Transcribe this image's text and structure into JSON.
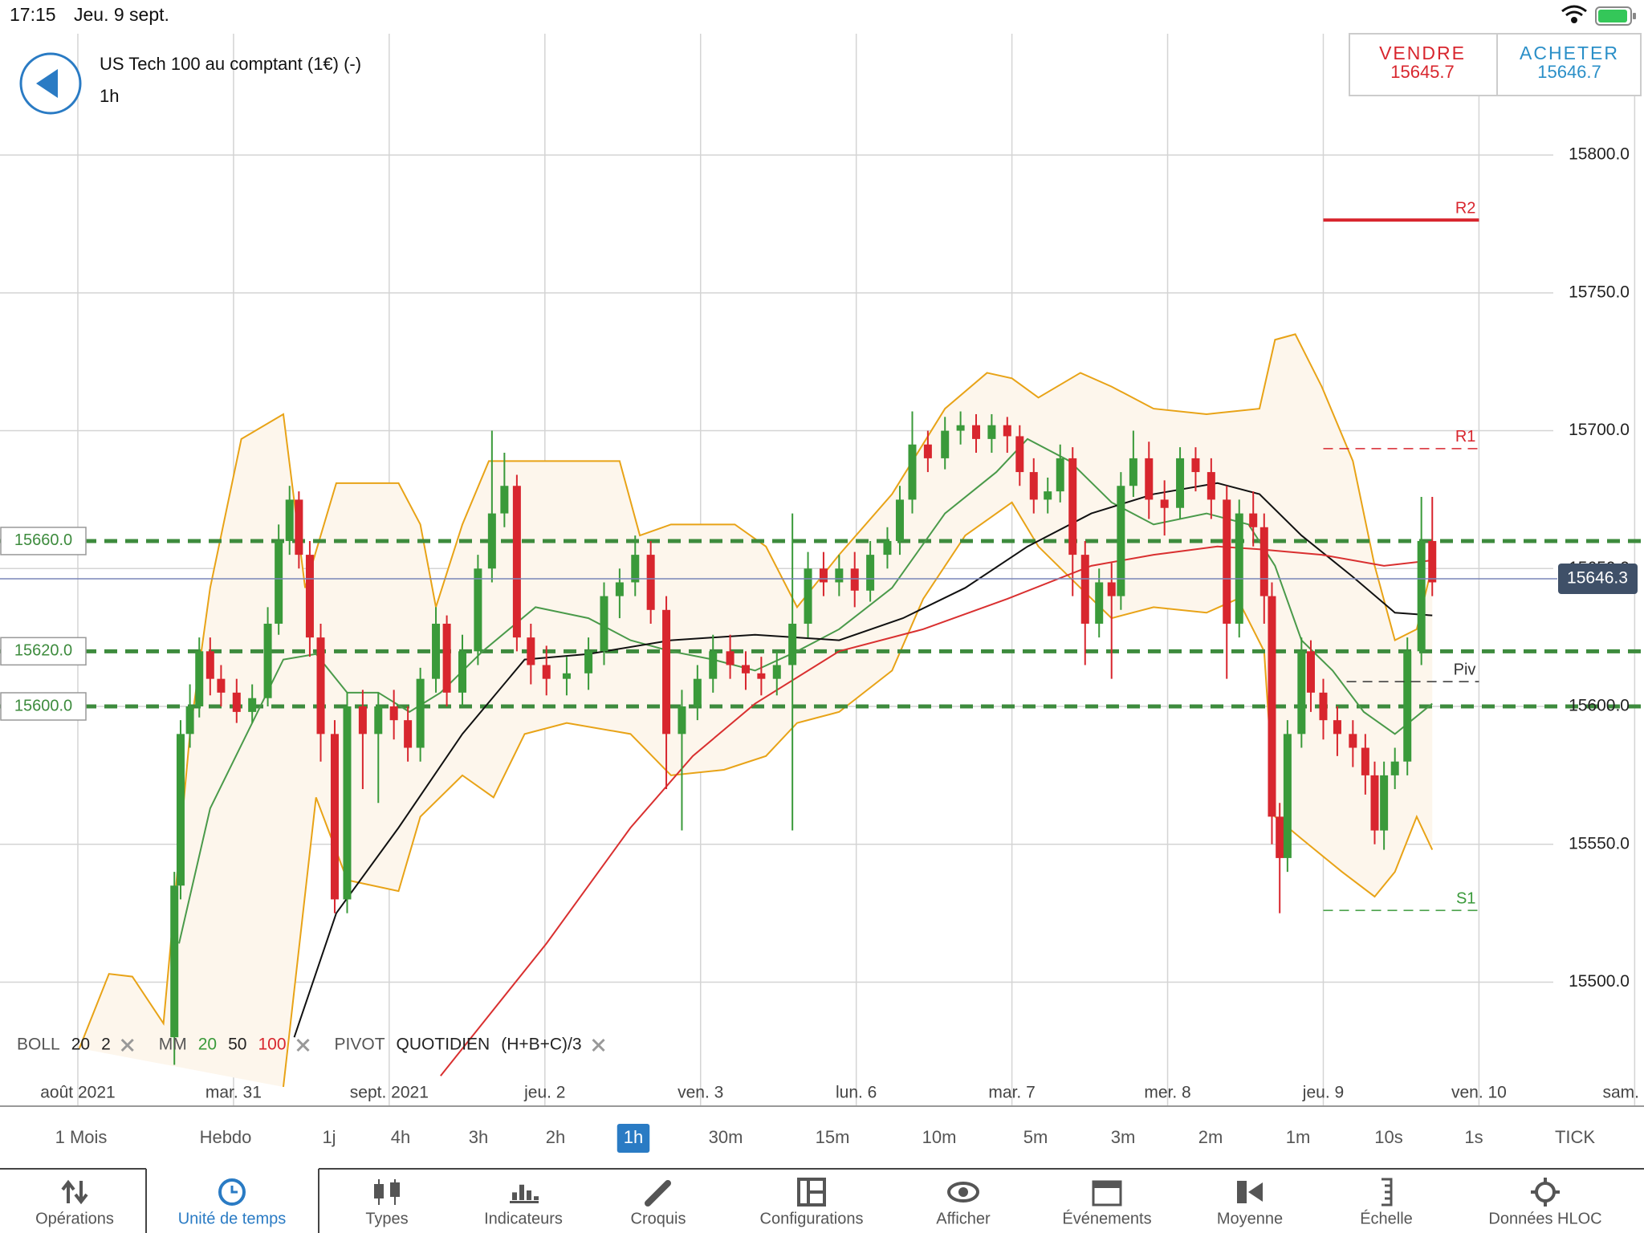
{
  "status_bar": {
    "time": "17:15",
    "date": "Jeu. 9 sept."
  },
  "header": {
    "title": "US Tech 100 au comptant (1€) (-)",
    "timeframe": "1h"
  },
  "quote": {
    "sell_label": "VENDRE",
    "sell": 15645.7,
    "buy_label": "ACHETER",
    "buy": 15646.7
  },
  "chart_data": {
    "type": "candlestick",
    "up_color": "#3a9a3a",
    "down_color": "#d8262e",
    "grid": true,
    "xlim": [
      29.5,
      40.06
    ],
    "ylim": [
      15455,
      15844
    ],
    "xticks": [
      {
        "value": 30,
        "label": "août 2021"
      },
      {
        "value": 31,
        "label": "mar. 31"
      },
      {
        "value": 32,
        "label": "sept. 2021"
      },
      {
        "value": 33,
        "label": "jeu. 2"
      },
      {
        "value": 34,
        "label": "ven. 3"
      },
      {
        "value": 35,
        "label": "lun. 6"
      },
      {
        "value": 36,
        "label": "mar. 7"
      },
      {
        "value": 37,
        "label": "mer. 8"
      },
      {
        "value": 38,
        "label": "jeu. 9"
      },
      {
        "value": 39,
        "label": "ven. 10"
      },
      {
        "value": 40,
        "label": "sam."
      }
    ],
    "yticks": [
      {
        "value": 15500,
        "label": "15500.0"
      },
      {
        "value": 15550,
        "label": "15550.0"
      },
      {
        "value": 15600,
        "label": "15600.0"
      },
      {
        "value": 15650,
        "label": "15650.0"
      },
      {
        "value": 15700,
        "label": "15700.0"
      },
      {
        "value": 15750,
        "label": "15750.0"
      },
      {
        "value": 15800,
        "label": "15800.0"
      }
    ],
    "x": [
      30.62,
      30.66,
      30.72,
      30.78,
      30.85,
      30.92,
      31.02,
      31.12,
      31.22,
      31.29,
      31.36,
      31.42,
      31.49,
      31.56,
      31.65,
      31.73,
      31.83,
      31.93,
      32.03,
      32.12,
      32.2,
      32.3,
      32.37,
      32.47,
      32.57,
      32.66,
      32.74,
      32.82,
      32.91,
      33.01,
      33.14,
      33.28,
      33.38,
      33.48,
      33.58,
      33.68,
      33.78,
      33.88,
      33.98,
      34.08,
      34.19,
      34.29,
      34.39,
      34.49,
      34.59,
      34.69,
      34.79,
      34.89,
      34.99,
      35.09,
      35.2,
      35.28,
      35.36,
      35.46,
      35.57,
      35.67,
      35.77,
      35.87,
      35.97,
      36.05,
      36.14,
      36.23,
      36.31,
      36.39,
      36.47,
      36.56,
      36.64,
      36.7,
      36.78,
      36.88,
      36.98,
      37.08,
      37.18,
      37.28,
      37.38,
      37.46,
      37.55,
      37.62,
      37.67,
      37.72,
      37.77,
      37.86,
      37.92,
      38,
      38.09,
      38.19,
      38.27,
      38.33,
      38.39,
      38.46,
      38.54,
      38.63,
      38.7
    ],
    "open": [
      15480,
      15535,
      15590,
      15600,
      15620,
      15610,
      15605,
      15598,
      15603,
      15630,
      15660,
      15675,
      15655,
      15625,
      15590,
      15530,
      15600,
      15590,
      15600,
      15595,
      15585,
      15610,
      15630,
      15605,
      15620,
      15650,
      15670,
      15680,
      15625,
      15615,
      15610,
      15612,
      15620,
      15640,
      15645,
      15655,
      15635,
      15590,
      15600,
      15610,
      15620,
      15615,
      15612,
      15610,
      15615,
      15630,
      15650,
      15645,
      15650,
      15642,
      15655,
      15660,
      15675,
      15695,
      15690,
      15700,
      15702,
      15697,
      15702,
      15698,
      15685,
      15675,
      15678,
      15690,
      15655,
      15630,
      15645,
      15640,
      15680,
      15690,
      15675,
      15672,
      15690,
      15685,
      15675,
      15630,
      15670,
      15665,
      15640,
      15560,
      15545,
      15590,
      15620,
      15605,
      15595,
      15590,
      15585,
      15575,
      15555,
      15575,
      15580,
      15620,
      15660
    ],
    "high": [
      15540,
      15595,
      15608,
      15625,
      15625,
      15615,
      15610,
      15608,
      15636,
      15666,
      15680,
      15678,
      15660,
      15630,
      15595,
      15605,
      15606,
      15605,
      15606,
      15600,
      15614,
      15636,
      15633,
      15626,
      15655,
      15700,
      15692,
      15684,
      15630,
      15622,
      15618,
      15625,
      15645,
      15650,
      15662,
      15660,
      15640,
      15606,
      15615,
      15626,
      15626,
      15620,
      15618,
      15620,
      15670,
      15656,
      15656,
      15655,
      15656,
      15660,
      15665,
      15680,
      15707,
      15700,
      15705,
      15707,
      15706,
      15706,
      15705,
      15702,
      15690,
      15683,
      15695,
      15694,
      15660,
      15650,
      15652,
      15685,
      15700,
      15696,
      15682,
      15694,
      15694,
      15690,
      15680,
      15675,
      15678,
      15670,
      15645,
      15565,
      15595,
      15625,
      15624,
      15610,
      15600,
      15595,
      15590,
      15580,
      15580,
      15585,
      15625,
      15676,
      15676
    ],
    "low": [
      15470,
      15530,
      15585,
      15596,
      15604,
      15600,
      15594,
      15594,
      15600,
      15626,
      15655,
      15650,
      15618,
      15580,
      15525,
      15525,
      15570,
      15565,
      15588,
      15580,
      15580,
      15605,
      15600,
      15600,
      15615,
      15645,
      15665,
      15620,
      15608,
      15604,
      15604,
      15606,
      15615,
      15632,
      15640,
      15630,
      15570,
      15555,
      15595,
      15605,
      15610,
      15606,
      15604,
      15604,
      15555,
      15625,
      15640,
      15640,
      15636,
      15638,
      15650,
      15655,
      15670,
      15685,
      15686,
      15695,
      15692,
      15692,
      15692,
      15680,
      15670,
      15670,
      15674,
      15640,
      15615,
      15625,
      15610,
      15635,
      15676,
      15668,
      15662,
      15668,
      15678,
      15668,
      15610,
      15625,
      15658,
      15630,
      15550,
      15525,
      15540,
      15585,
      15598,
      15588,
      15582,
      15578,
      15568,
      15550,
      15548,
      15570,
      15575,
      15615,
      15640
    ],
    "close": [
      15535,
      15590,
      15600,
      15620,
      15610,
      15605,
      15598,
      15603,
      15630,
      15660,
      15675,
      15655,
      15625,
      15590,
      15530,
      15600,
      15590,
      15600,
      15595,
      15585,
      15610,
      15630,
      15605,
      15620,
      15650,
      15670,
      15680,
      15625,
      15615,
      15610,
      15612,
      15620,
      15640,
      15645,
      15655,
      15635,
      15590,
      15600,
      15610,
      15620,
      15615,
      15612,
      15610,
      15615,
      15630,
      15650,
      15645,
      15650,
      15642,
      15655,
      15660,
      15675,
      15695,
      15690,
      15700,
      15702,
      15697,
      15702,
      15698,
      15685,
      15675,
      15678,
      15690,
      15655,
      15630,
      15645,
      15640,
      15680,
      15690,
      15675,
      15672,
      15690,
      15685,
      15675,
      15630,
      15670,
      15665,
      15640,
      15560,
      15545,
      15590,
      15620,
      15605,
      15595,
      15590,
      15585,
      15575,
      15555,
      15575,
      15580,
      15620,
      15660,
      15645
    ],
    "bollinger": {
      "color": "#e8a317",
      "fill": "#fdf6ec",
      "upper": {
        "x": [
          30.01,
          30.2,
          30.35,
          30.55,
          30.72,
          30.85,
          31.05,
          31.32,
          31.46,
          31.66,
          31.86,
          32.06,
          32.2,
          32.3,
          32.47,
          32.64,
          32.87,
          33.21,
          33.48,
          33.61,
          33.81,
          34.22,
          34.42,
          34.62,
          34.89,
          35.23,
          35.57,
          35.84,
          36.0,
          36.17,
          36.44,
          36.64,
          36.91,
          37.25,
          37.59,
          37.69,
          37.82,
          37.99,
          38.19,
          38.33,
          38.46,
          38.6,
          38.7
        ],
        "values": [
          15476,
          15503,
          15502,
          15485,
          15590,
          15643,
          15697,
          15706,
          15643,
          15681,
          15681,
          15681,
          15666,
          15636,
          15666,
          15689,
          15689,
          15689,
          15689,
          15662,
          15666,
          15666,
          15658,
          15636,
          15655,
          15677,
          15708,
          15721,
          15719,
          15712,
          15721,
          15716,
          15708,
          15706,
          15708,
          15733,
          15735,
          15716,
          15689,
          15651,
          15624,
          15628,
          15651
        ]
      },
      "lower": {
        "x": [
          31.32,
          31.53,
          31.73,
          32.06,
          32.2,
          32.47,
          32.67,
          32.87,
          33.14,
          33.55,
          33.81,
          34.15,
          34.42,
          34.62,
          34.89,
          35.23,
          35.43,
          35.7,
          36.0,
          36.17,
          36.44,
          36.64,
          36.91,
          37.25,
          37.45,
          37.62,
          37.69,
          37.86,
          38.12,
          38.33,
          38.46,
          38.6,
          38.7
        ],
        "values": [
          15462,
          15567,
          15537,
          15533,
          15560,
          15575,
          15567,
          15590,
          15594,
          15590,
          15575,
          15577,
          15582,
          15594,
          15598,
          15613,
          15639,
          15662,
          15674,
          15658,
          15643,
          15632,
          15636,
          15634,
          15639,
          15620,
          15560,
          15552,
          15540,
          15531,
          15540,
          15560,
          15548
        ]
      }
    },
    "moving_averages": [
      {
        "color": "#4a9a4a",
        "x": [
          30.65,
          30.85,
          31.12,
          31.32,
          31.53,
          31.73,
          31.93,
          32.13,
          32.33,
          32.6,
          32.94,
          33.28,
          33.55,
          33.81,
          34.08,
          34.35,
          34.62,
          34.89,
          35.23,
          35.57,
          35.9,
          36.1,
          36.37,
          36.64,
          36.91,
          37.25,
          37.52,
          37.69,
          37.86,
          38.06,
          38.26,
          38.46,
          38.7
        ],
        "values": [
          15514,
          15563,
          15594,
          15617,
          15619,
          15605,
          15605,
          15598,
          15605,
          15620,
          15636,
          15632,
          15624,
          15620,
          15617,
          15613,
          15620,
          15628,
          15643,
          15670,
          15685,
          15697,
          15689,
          15674,
          15666,
          15670,
          15666,
          15651,
          15624,
          15613,
          15598,
          15590,
          15601
        ]
      },
      {
        "color": "#111111",
        "x": [
          31.39,
          31.66,
          32.06,
          32.47,
          32.87,
          33.28,
          33.81,
          34.35,
          34.89,
          35.3,
          35.7,
          36.1,
          36.51,
          36.91,
          37.32,
          37.59,
          37.86,
          38.19,
          38.46,
          38.7
        ],
        "values": [
          15480,
          15525,
          15556,
          15590,
          15617,
          15619,
          15624,
          15626,
          15624,
          15632,
          15643,
          15658,
          15670,
          15677,
          15681,
          15677,
          15662,
          15647,
          15634,
          15633
        ]
      },
      {
        "color": "#d93030",
        "x": [
          32.33,
          33.01,
          33.55,
          33.95,
          34.35,
          34.89,
          35.43,
          35.97,
          36.51,
          36.91,
          37.32,
          37.59,
          37.99,
          38.39,
          38.7
        ],
        "values": [
          15466,
          15514,
          15556,
          15582,
          15601,
          15620,
          15628,
          15639,
          15651,
          15655,
          15658,
          15657,
          15655,
          15651,
          15653
        ]
      }
    ],
    "level_color": "#3d8b3d",
    "levels": [
      {
        "value": 15660,
        "label": "15660.0"
      },
      {
        "value": 15620,
        "label": "15620.0"
      },
      {
        "value": 15600,
        "label": "15600.0"
      }
    ],
    "pivots": [
      {
        "label": "R2",
        "value": 15776.4,
        "color": "#d8262e",
        "dashed": false,
        "from": 38,
        "to": 39
      },
      {
        "label": "R1",
        "value": 15693.5,
        "color": "#d8262e",
        "dashed": true,
        "from": 38,
        "to": 39
      },
      {
        "label": "Piv",
        "value": 15609,
        "color": "#333333",
        "dashed": true,
        "from": 38.15,
        "to": 39
      },
      {
        "label": "S1",
        "value": 15526,
        "color": "#3a9a3a",
        "dashed": true,
        "from": 38,
        "to": 39
      }
    ],
    "last": 15646.3
  },
  "legend": [
    {
      "name": "BOLL",
      "params": [
        20,
        2
      ],
      "colors": [
        "#222",
        "#222"
      ]
    },
    {
      "name": "MM",
      "params": [
        20,
        50,
        100
      ],
      "colors": [
        "#3a9a3a",
        "#222",
        "#d8262e"
      ]
    },
    {
      "name": "PIVOT",
      "params": [
        "QUOTIDIEN",
        "(H+B+C)/3"
      ],
      "colors": [
        "#222",
        "#222"
      ]
    }
  ],
  "timeframes": {
    "items": [
      "1 Mois",
      "Hebdo",
      "1j",
      "4h",
      "3h",
      "2h",
      "1h",
      "30m",
      "15m",
      "10m",
      "5m",
      "3m",
      "2m",
      "1m",
      "10s",
      "1s",
      "TICK"
    ],
    "selected": 6
  },
  "toolbar": {
    "items": [
      "Opérations",
      "Unité de temps",
      "Types",
      "Indicateurs",
      "Croquis",
      "Configurations",
      "Afficher",
      "Événements",
      "Moyenne",
      "Échelle",
      "Données HLOC"
    ],
    "selected": 1
  }
}
